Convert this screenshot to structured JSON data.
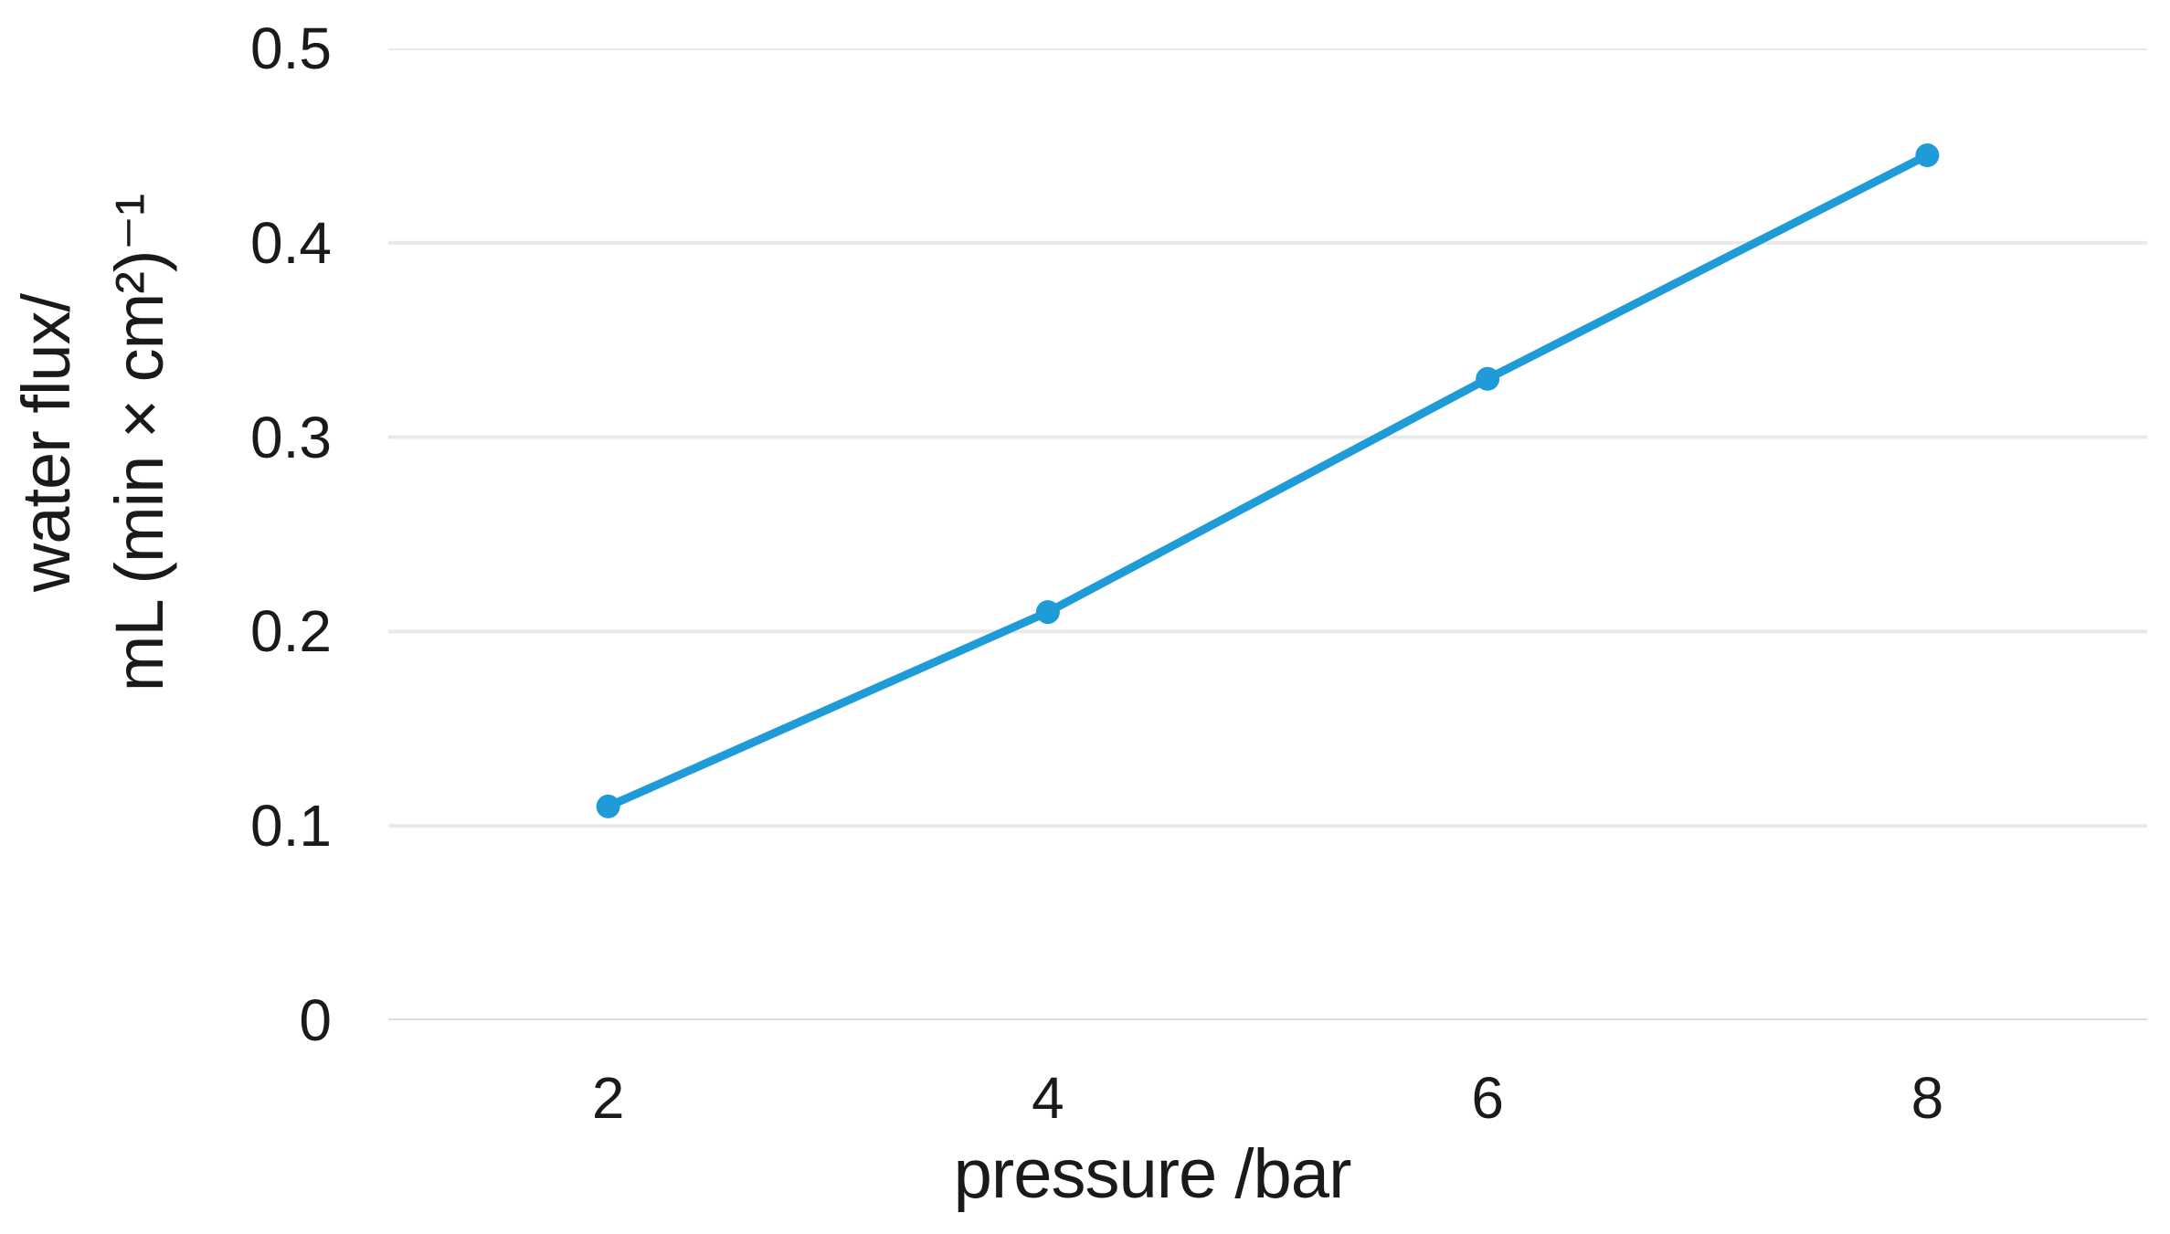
{
  "figure": {
    "background_color": "#ffffff",
    "text_color": "#1a1a1a",
    "gridline_color": "#e9e9e9",
    "axis_line_color": "#dedede"
  },
  "chart_data": {
    "type": "line",
    "title": "",
    "xlabel": "pressure /bar",
    "ylabel_line1": "water flux/",
    "ylabel_line2": "mL (min × cm²)⁻¹",
    "x": [
      2,
      4,
      6,
      8
    ],
    "series": [
      {
        "name": "water flux",
        "values": [
          0.11,
          0.21,
          0.33,
          0.445
        ],
        "color": "#1f9bd7",
        "marker": "circle"
      }
    ],
    "xlim": [
      1,
      9
    ],
    "ylim": [
      0,
      0.5
    ],
    "xtick_labels": [
      "2",
      "4",
      "6",
      "8"
    ],
    "ytick_values": [
      0,
      0.1,
      0.2,
      0.3,
      0.4,
      0.5
    ],
    "ytick_labels": [
      "0",
      "0.1",
      "0.2",
      "0.3",
      "0.4",
      "0.5"
    ],
    "grid": "horizontal",
    "legend": "none",
    "line_width": 9,
    "marker_radius": 13
  }
}
